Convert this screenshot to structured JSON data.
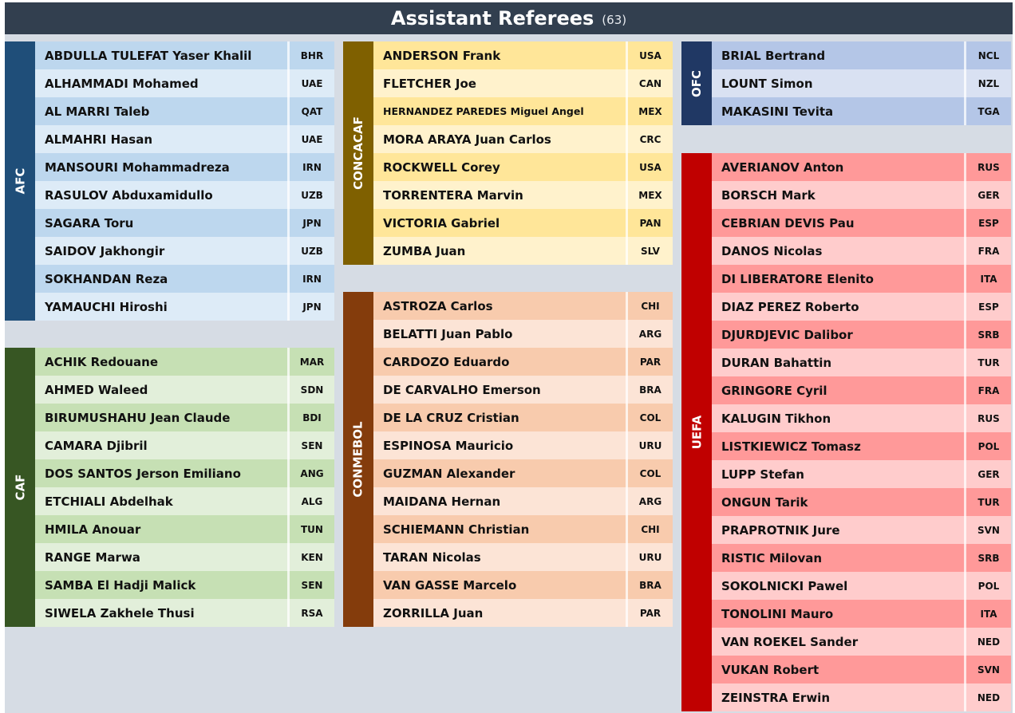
{
  "header": {
    "title": "Assistant Referees",
    "count": "(63)"
  },
  "confederations": [
    {
      "key": "afc",
      "label": "AFC",
      "band": "#1f4e79",
      "rowA": "#bdd7ee",
      "rowB": "#ddebf7",
      "referees": [
        [
          "ABDULLA TULEFAT Yaser Khalil",
          "BHR"
        ],
        [
          "ALHAMMADI Mohamed",
          "UAE"
        ],
        [
          "AL MARRI Taleb",
          "QAT"
        ],
        [
          "ALMAHRI Hasan",
          "UAE"
        ],
        [
          "MANSOURI Mohammadreza",
          "IRN"
        ],
        [
          "RASULOV Abduxamidullo",
          "UZB"
        ],
        [
          "SAGARA Toru",
          "JPN"
        ],
        [
          "SAIDOV Jakhongir",
          "UZB"
        ],
        [
          "SOKHANDAN Reza",
          "IRN"
        ],
        [
          "YAMAUCHI Hiroshi",
          "JPN"
        ]
      ]
    },
    {
      "key": "caf",
      "label": "CAF",
      "band": "#375623",
      "rowA": "#c6e0b4",
      "rowB": "#e2efda",
      "referees": [
        [
          "ACHIK Redouane",
          "MAR"
        ],
        [
          "AHMED Waleed",
          "SDN"
        ],
        [
          "BIRUMUSHAHU Jean Claude",
          "BDI"
        ],
        [
          "CAMARA Djibril",
          "SEN"
        ],
        [
          "DOS SANTOS Jerson Emiliano",
          "ANG"
        ],
        [
          "ETCHIALI Abdelhak",
          "ALG"
        ],
        [
          "HMILA Anouar",
          "TUN"
        ],
        [
          "RANGE Marwa",
          "KEN"
        ],
        [
          "SAMBA El Hadji Malick",
          "SEN"
        ],
        [
          "SIWELA Zakhele Thusi",
          "RSA"
        ]
      ]
    },
    {
      "key": "concacaf",
      "label": "CONCACAF",
      "band": "#7f6000",
      "rowA": "#ffe699",
      "rowB": "#fff2cc",
      "referees": [
        [
          "ANDERSON Frank",
          "USA"
        ],
        [
          "FLETCHER Joe",
          "CAN"
        ],
        [
          "HERNANDEZ PAREDES Miguel Angel",
          "MEX"
        ],
        [
          "MORA ARAYA Juan Carlos",
          "CRC"
        ],
        [
          "ROCKWELL Corey",
          "USA"
        ],
        [
          "TORRENTERA Marvin",
          "MEX"
        ],
        [
          "VICTORIA Gabriel",
          "PAN"
        ],
        [
          "ZUMBA Juan",
          "SLV"
        ]
      ]
    },
    {
      "key": "conmebol",
      "label": "CONMEBOL",
      "band": "#843c0c",
      "rowA": "#f8cbad",
      "rowB": "#fce4d6",
      "referees": [
        [
          "ASTROZA Carlos",
          "CHI"
        ],
        [
          "BELATTI Juan Pablo",
          "ARG"
        ],
        [
          "CARDOZO Eduardo",
          "PAR"
        ],
        [
          "DE CARVALHO Emerson",
          "BRA"
        ],
        [
          "DE LA CRUZ Cristian",
          "COL"
        ],
        [
          "ESPINOSA Mauricio",
          "URU"
        ],
        [
          "GUZMAN Alexander",
          "COL"
        ],
        [
          "MAIDANA Hernan",
          "ARG"
        ],
        [
          "SCHIEMANN Christian",
          "CHI"
        ],
        [
          "TARAN Nicolas",
          "URU"
        ],
        [
          "VAN GASSE Marcelo",
          "BRA"
        ],
        [
          "ZORRILLA Juan",
          "PAR"
        ]
      ]
    },
    {
      "key": "ofc",
      "label": "OFC",
      "band": "#203864",
      "rowA": "#b4c6e7",
      "rowB": "#d9e1f2",
      "referees": [
        [
          "BRIAL Bertrand",
          "NCL"
        ],
        [
          "LOUNT Simon",
          "NZL"
        ],
        [
          "MAKASINI Tevita",
          "TGA"
        ]
      ]
    },
    {
      "key": "uefa",
      "label": "UEFA",
      "band": "#c00000",
      "rowA": "#ff9999",
      "rowB": "#ffcccc",
      "referees": [
        [
          "AVERIANOV Anton",
          "RUS"
        ],
        [
          "BORSCH Mark",
          "GER"
        ],
        [
          "CEBRIAN DEVIS Pau",
          "ESP"
        ],
        [
          "DANOS Nicolas",
          "FRA"
        ],
        [
          "DI LIBERATORE Elenito",
          "ITA"
        ],
        [
          "DIAZ PEREZ Roberto",
          "ESP"
        ],
        [
          "DJURDJEVIC Dalibor",
          "SRB"
        ],
        [
          "DURAN Bahattin",
          "TUR"
        ],
        [
          "GRINGORE Cyril",
          "FRA"
        ],
        [
          "KALUGIN Tikhon",
          "RUS"
        ],
        [
          "LISTKIEWICZ Tomasz",
          "POL"
        ],
        [
          "LUPP Stefan",
          "GER"
        ],
        [
          "ONGUN Tarik",
          "TUR"
        ],
        [
          "PRAPROTNIK Jure",
          "SVN"
        ],
        [
          "RISTIC Milovan",
          "SRB"
        ],
        [
          "SOKOLNICKI Pawel",
          "POL"
        ],
        [
          "TONOLINI Mauro",
          "ITA"
        ],
        [
          "VAN ROEKEL Sander",
          "NED"
        ],
        [
          "VUKAN Robert",
          "SVN"
        ],
        [
          "ZEINSTRA Erwin",
          "NED"
        ]
      ]
    }
  ]
}
